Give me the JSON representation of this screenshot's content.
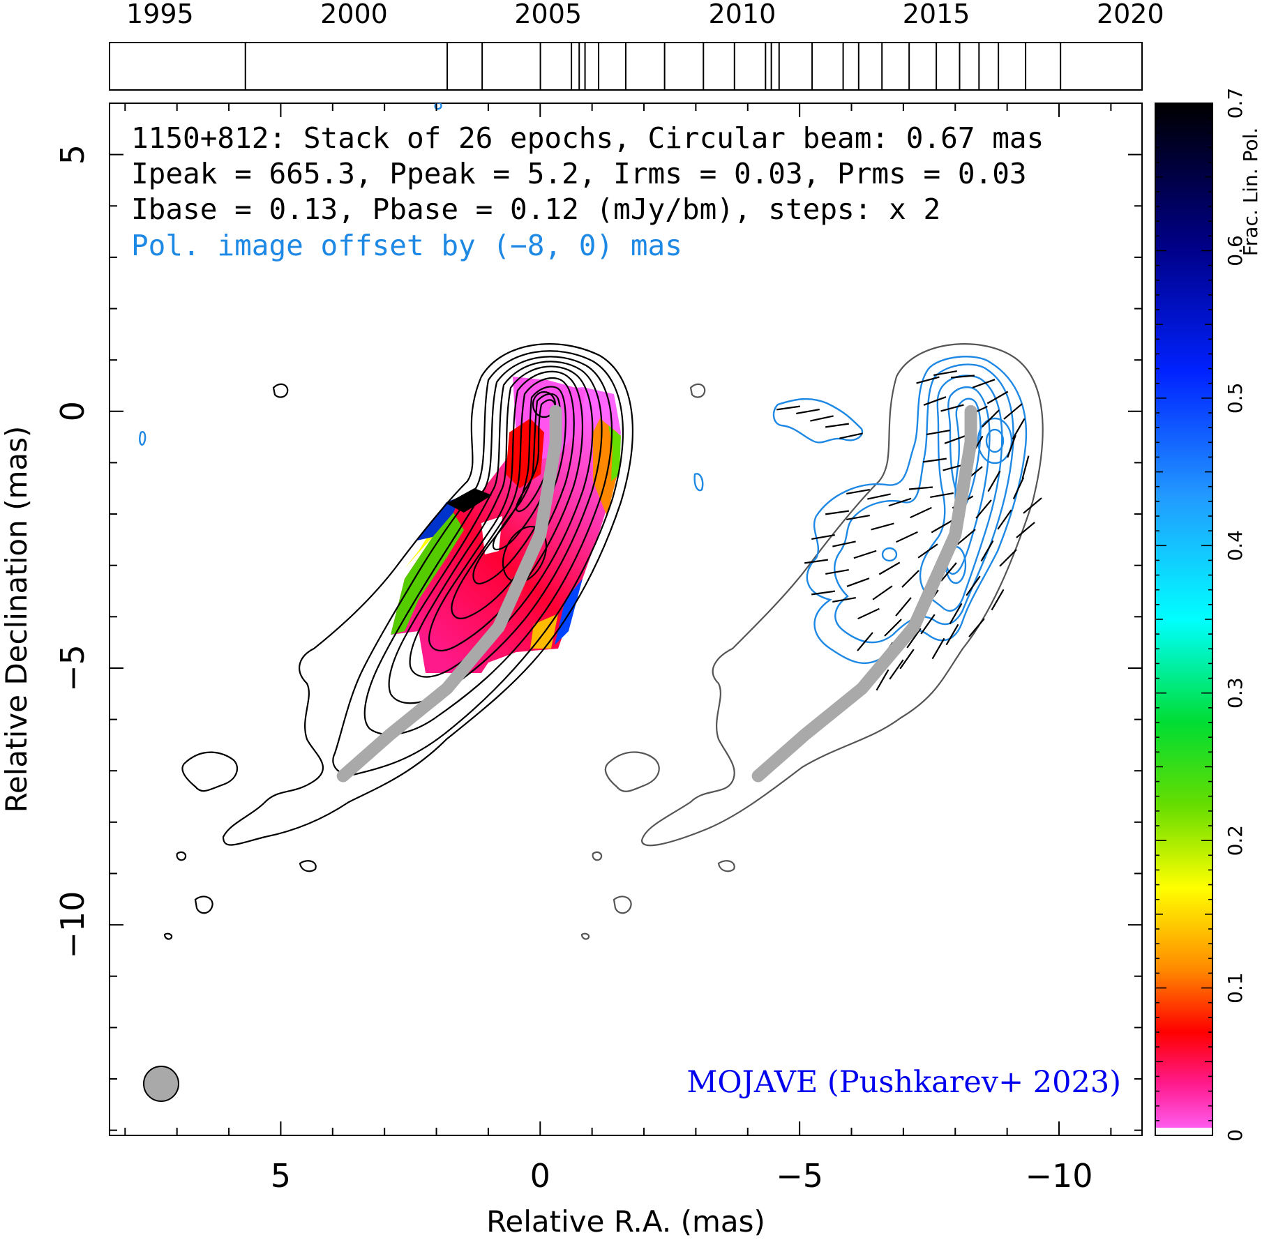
{
  "chart_data": {
    "type": "contour",
    "source": "1150+812",
    "annotation_lines": [
      "1150+812: Stack of 26 epochs, Circular beam: 0.67 mas",
      "Ipeak = 665.3, Ppeak = 5.2, Irms = 0.03, Prms = 0.03",
      "Ibase = 0.13, Pbase = 0.12 (mJy/bm), steps: x 2"
    ],
    "offset_note": "Pol. image offset by (−8, 0) mas",
    "credit": "MOJAVE (Pushkarev+ 2023)",
    "xlabel": "Relative R.A. (mas)",
    "ylabel": "Relative Declination (mas)",
    "xlim": [
      8.3,
      -11.6
    ],
    "ylim": [
      -14.1,
      6
    ],
    "xticks": [
      5,
      0,
      -5,
      -10
    ],
    "xtick_labels": [
      "5",
      "0",
      "−5",
      "−10"
    ],
    "yticks": [
      5,
      0,
      -5,
      -10
    ],
    "ytick_labels": [
      "5",
      "0",
      "−5",
      "−10"
    ],
    "epoch_axis": {
      "range": [
        1993.7,
        2020.3
      ],
      "ticks": [
        1995,
        2000,
        2005,
        2010,
        2015,
        2020
      ],
      "epochs": [
        1997.2,
        2002.4,
        2003.3,
        2004.8,
        2005.6,
        2005.8,
        2005.95,
        2006.3,
        2007.0,
        2008.0,
        2009.0,
        2009.8,
        2010.6,
        2010.75,
        2010.95,
        2011.8,
        2012.6,
        2013.0,
        2013.6,
        2014.3,
        2015.0,
        2015.6,
        2016.1,
        2016.6,
        2017.3,
        2018.2
      ]
    },
    "colorbar": {
      "label": "Frac. Lin. Pol.",
      "range": [
        0,
        0.7
      ],
      "ticks": [
        0,
        0.1,
        0.2,
        0.3,
        0.4,
        0.5,
        0.6,
        0.7
      ],
      "tick_labels": [
        "0",
        "0.1",
        "0.2",
        "0.3",
        "0.4",
        "0.5",
        "0.6",
        "0.7"
      ],
      "colors": [
        "#ff66ff",
        "#ff0033",
        "#ff8800",
        "#ffff00",
        "#00cc00",
        "#00ffff",
        "#3399ff",
        "#0000ff",
        "#000088",
        "#000000"
      ]
    },
    "ridge_line": [
      [
        3.8,
        -7.1
      ],
      [
        2.9,
        -6.3
      ],
      [
        1.8,
        -5.4
      ],
      [
        0.8,
        -4.2
      ],
      [
        0.0,
        -2.4
      ],
      [
        -0.3,
        -0.6
      ],
      [
        -0.3,
        0.0
      ]
    ],
    "beam_diameter_mas": 0.67,
    "pol_offset_mas": [
      -8,
      0
    ]
  },
  "colors": {
    "total_intensity_contours": "#000000",
    "pol_contours": "#1e88e5",
    "ridge_line": "#a9a9a9",
    "offset_note": "#1e88e5",
    "credit": "#0000ee"
  }
}
